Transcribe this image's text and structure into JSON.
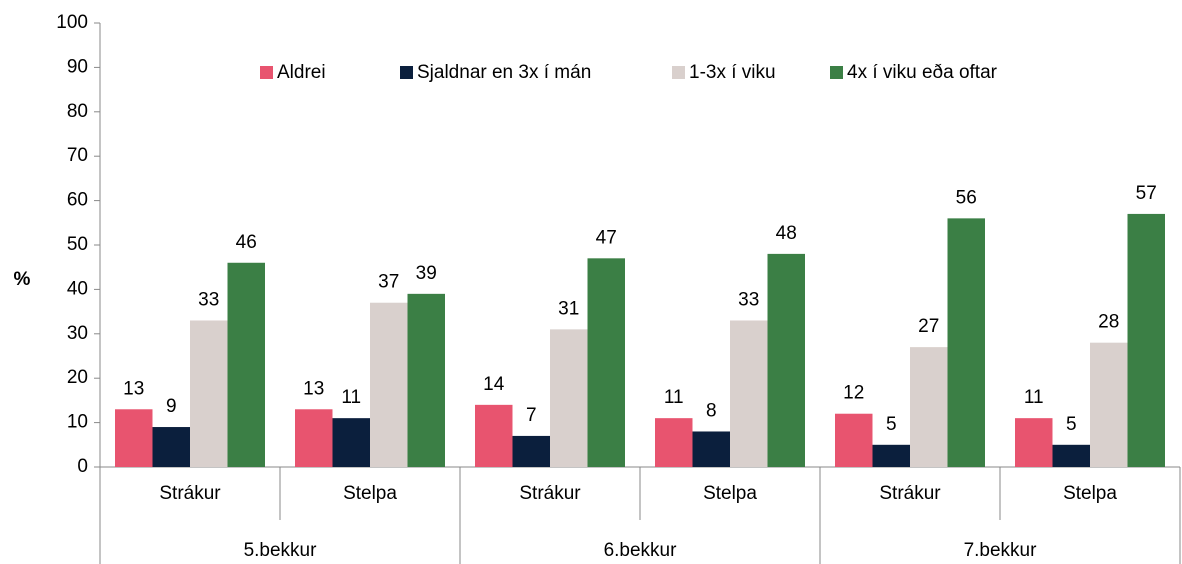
{
  "chart_data": {
    "type": "bar",
    "y_label": "%",
    "groups": [
      "5.bekkur",
      "6.bekkur",
      "7.bekkur"
    ],
    "categories": [
      "Strákur",
      "Stelpa",
      "Strákur",
      "Stelpa",
      "Strákur",
      "Stelpa"
    ],
    "series": [
      {
        "name": "Aldrei",
        "color": "#e8546f",
        "values": [
          13,
          13,
          14,
          11,
          12,
          11
        ]
      },
      {
        "name": "Sjaldnar en 3x í mán",
        "color": "#0b1f3d",
        "values": [
          9,
          11,
          7,
          8,
          5,
          5
        ]
      },
      {
        "name": "1-3x í viku",
        "color": "#d9d0cd",
        "values": [
          33,
          37,
          31,
          33,
          27,
          28
        ]
      },
      {
        "name": "4x í viku eða oftar",
        "color": "#3b7f45",
        "values": [
          46,
          39,
          47,
          48,
          56,
          57
        ]
      }
    ],
    "ylim": [
      0,
      100
    ],
    "yticks": [
      0,
      10,
      20,
      30,
      40,
      50,
      60,
      70,
      80,
      90,
      100
    ],
    "grid": false,
    "legend": "top"
  }
}
